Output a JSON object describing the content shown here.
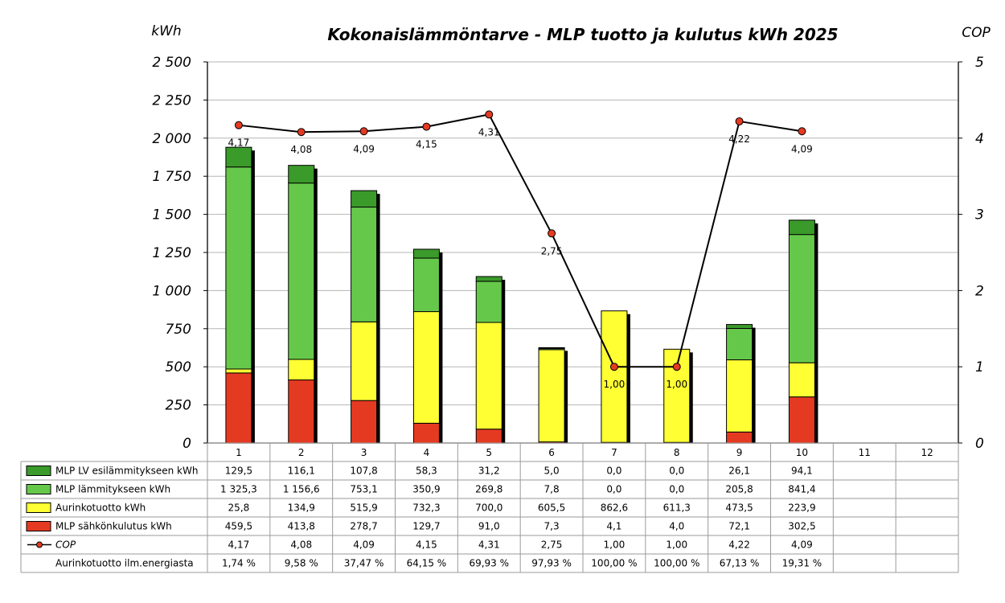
{
  "chart_data": {
    "type": "bar",
    "title": "Kokonaislämmöntarve - MLP tuotto ja kulutus kWh 2025",
    "ylabel": "kWh",
    "y2label": "COP",
    "ylim": [
      0,
      2500
    ],
    "y2lim": [
      0,
      5
    ],
    "yticks": [
      "0",
      "250",
      "500",
      "750",
      "1 000",
      "1 250",
      "1 500",
      "1 750",
      "2 000",
      "2 250",
      "2 500"
    ],
    "y2ticks": [
      "0",
      "1",
      "2",
      "3",
      "4",
      "5"
    ],
    "categories": [
      "1",
      "2",
      "3",
      "4",
      "5",
      "6",
      "7",
      "8",
      "9",
      "10",
      "11",
      "12"
    ],
    "series": [
      {
        "key": "lv",
        "name": "MLP LV esilämmitykseen kWh",
        "color": "#3a9a2a",
        "values": [
          129.5,
          116.1,
          107.8,
          58.3,
          31.2,
          5.0,
          0.0,
          0.0,
          26.1,
          94.1,
          null,
          null
        ],
        "labels": [
          "129,5",
          "116,1",
          "107,8",
          "58,3",
          "31,2",
          "5,0",
          "0,0",
          "0,0",
          "26,1",
          "94,1",
          "",
          ""
        ]
      },
      {
        "key": "heat",
        "name": "MLP lämmitykseen kWh",
        "color": "#66c84a",
        "values": [
          1325.3,
          1156.6,
          753.1,
          350.9,
          269.8,
          7.8,
          0.0,
          0.0,
          205.8,
          841.4,
          null,
          null
        ],
        "labels": [
          "1 325,3",
          "1 156,6",
          "753,1",
          "350,9",
          "269,8",
          "7,8",
          "0,0",
          "0,0",
          "205,8",
          "841,4",
          "",
          ""
        ]
      },
      {
        "key": "solar",
        "name": "Aurinkotuotto kWh",
        "color": "#ffff33",
        "values": [
          25.8,
          134.9,
          515.9,
          732.3,
          700.0,
          605.5,
          862.6,
          611.3,
          473.5,
          223.9,
          null,
          null
        ],
        "labels": [
          "25,8",
          "134,9",
          "515,9",
          "732,3",
          "700,0",
          "605,5",
          "862,6",
          "611,3",
          "473,5",
          "223,9",
          "",
          ""
        ]
      },
      {
        "key": "elec",
        "name": "MLP sähkönkulutus kWh",
        "color": "#e53a22",
        "values": [
          459.5,
          413.8,
          278.7,
          129.7,
          91.0,
          7.3,
          4.1,
          4.0,
          72.1,
          302.5,
          null,
          null
        ],
        "labels": [
          "459,5",
          "413,8",
          "278,7",
          "129,7",
          "91,0",
          "7,3",
          "4,1",
          "4,0",
          "72,1",
          "302,5",
          "",
          ""
        ]
      }
    ],
    "cop": {
      "name": "COP",
      "values": [
        4.17,
        4.08,
        4.09,
        4.15,
        4.31,
        2.75,
        1.0,
        1.0,
        4.22,
        4.09,
        null,
        null
      ],
      "labels": [
        "4,17",
        "4,08",
        "4,09",
        "4,15",
        "4,31",
        "2,75",
        "1,00",
        "1,00",
        "4,22",
        "4,09",
        "",
        ""
      ]
    },
    "solar_share": {
      "name": "Aurinkotuotto ilm.energiasta",
      "labels": [
        "1,74 %",
        "9,58 %",
        "37,47 %",
        "64,15 %",
        "69,93 %",
        "97,93 %",
        "100,00 %",
        "100,00 %",
        "67,13 %",
        "19,31 %",
        "",
        ""
      ]
    }
  }
}
